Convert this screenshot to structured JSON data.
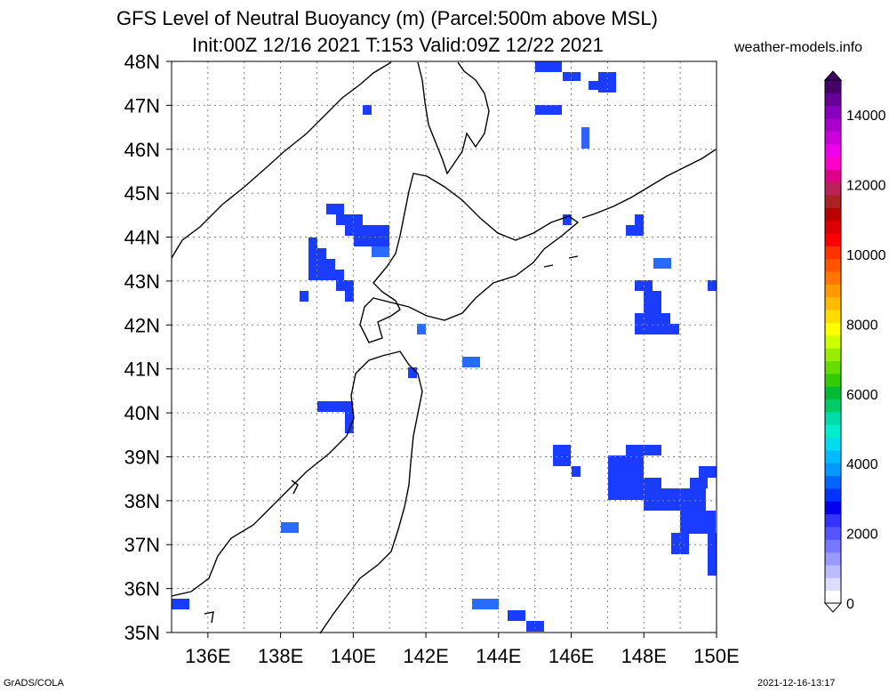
{
  "header": {
    "title_line1": "GFS Level of Neutral Buoyancy (m) (Parcel:500m above MSL)",
    "title_line2": "Init:00Z 12/16 2021 T:153 Valid:09Z 12/22 2021",
    "site": "weather-models.info"
  },
  "footer": {
    "left": "GrADS/COLA",
    "right": "2021-12-16-13:17"
  },
  "map": {
    "lat_labels": [
      "48N",
      "47N",
      "46N",
      "45N",
      "44N",
      "43N",
      "42N",
      "41N",
      "40N",
      "39N",
      "38N",
      "37N",
      "36N",
      "35N"
    ],
    "lon_labels": [
      "136E",
      "138E",
      "140E",
      "142E",
      "144E",
      "146E",
      "148E",
      "150E"
    ],
    "region": {
      "lon_min": 135,
      "lon_max": 150,
      "lat_min": 35,
      "lat_max": 48
    }
  },
  "colorbar": {
    "labels": [
      "0",
      "2000",
      "4000",
      "6000",
      "8000",
      "10000",
      "12000",
      "14000"
    ],
    "colors": [
      "#ffffff",
      "#ddddff",
      "#bbbbff",
      "#9999ff",
      "#7777ff",
      "#5555ff",
      "#3333ff",
      "#0000ee",
      "#0033ff",
      "#0066ff",
      "#0099ff",
      "#00bbff",
      "#00ddee",
      "#00eecc",
      "#00ddaa",
      "#00cc66",
      "#00bb33",
      "#33cc00",
      "#66dd00",
      "#99ee00",
      "#ccff00",
      "#ffff00",
      "#ffdd00",
      "#ffbb00",
      "#ff9900",
      "#ff7700",
      "#ff5500",
      "#ff3300",
      "#ff0000",
      "#dd0000",
      "#bb0000",
      "#aa2222",
      "#bb2255",
      "#dd0088",
      "#ff00cc",
      "#ee00ee",
      "#cc00dd",
      "#aa00cc",
      "#8800bb",
      "#660099",
      "#440066"
    ]
  }
}
